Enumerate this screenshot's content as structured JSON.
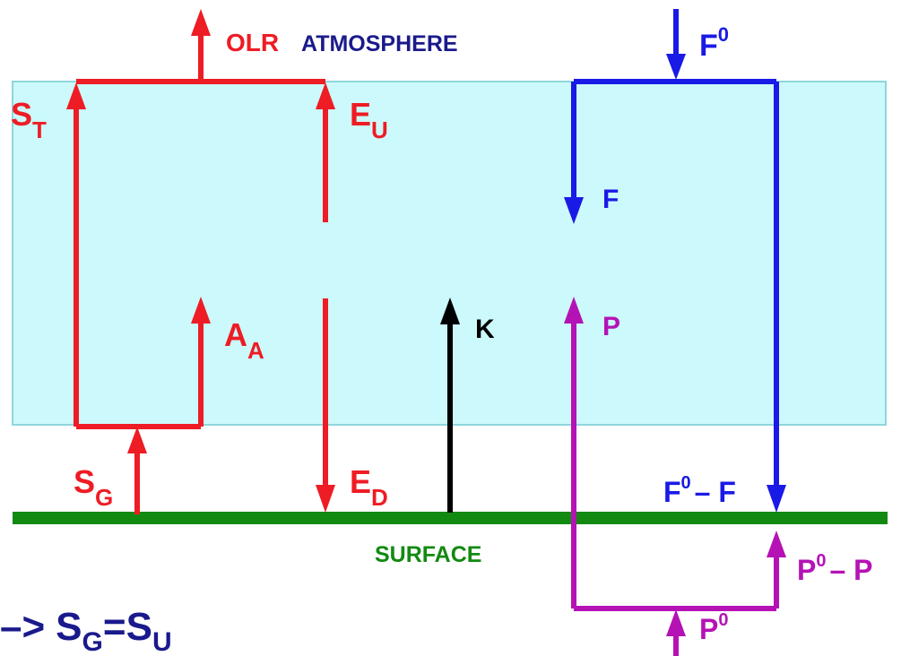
{
  "labels": {
    "olr": "OLR",
    "atmosphere": "ATMOSPHERE",
    "surface": "SURFACE",
    "s_t": {
      "main": "S",
      "sub": "T"
    },
    "e_u": {
      "main": "E",
      "sub": "U"
    },
    "a_a": {
      "main": "A",
      "sub": "A"
    },
    "s_g": {
      "main": "S",
      "sub": "G"
    },
    "e_d": {
      "main": "E",
      "sub": "D"
    },
    "k": "K",
    "f0": {
      "main": "F",
      "sup": "0"
    },
    "f": "F",
    "p": "P",
    "f0_minus_f": {
      "main": "F",
      "sup": "0",
      "rest": "– F"
    },
    "p0_minus_p": {
      "main": "P",
      "sup": "0",
      "rest": "– P"
    },
    "p0": {
      "main": "P",
      "sup": "0"
    }
  },
  "equation": {
    "arrow": "–>",
    "lhs": "S",
    "lhs_sub": "G",
    "eq": "=",
    "rhs": "S",
    "rhs_sub": "U"
  },
  "colors": {
    "atmosphere_fill": "#ccf9fb",
    "atmosphere_border": "#8fd6dc",
    "shortwave_red": "#ee1c24",
    "solar_blue": "#1a1ae6",
    "title_navy": "#1a1a8c",
    "surface_green": "#128a12",
    "moisture_purple": "#b512b5",
    "sensible_black": "#000000"
  }
}
